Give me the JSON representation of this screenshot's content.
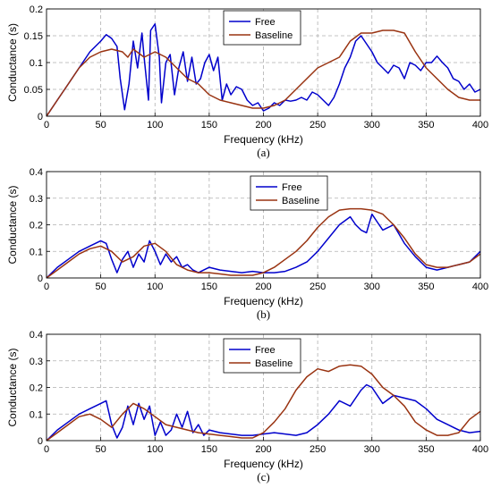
{
  "chart_data": [
    {
      "type": "line",
      "caption": "(a)",
      "xlabel": "Frequency (kHz)",
      "ylabel": "Conductance (s)",
      "xlim": [
        0,
        400
      ],
      "ylim": [
        0,
        0.2
      ],
      "xticks": [
        0,
        50,
        100,
        150,
        200,
        250,
        300,
        350,
        400
      ],
      "yticks": [
        0,
        0.05,
        0.1,
        0.15,
        0.2
      ],
      "ytick_labels": [
        "0",
        "0.05",
        "0.1",
        "0.15",
        "0.2"
      ],
      "grid": true,
      "legend_position": "top-center",
      "series": [
        {
          "name": "Free",
          "color": "#0000cc",
          "x": [
            0,
            10,
            20,
            30,
            40,
            50,
            55,
            60,
            65,
            68,
            72,
            76,
            80,
            84,
            88,
            90,
            94,
            96,
            100,
            104,
            106,
            110,
            114,
            118,
            122,
            126,
            130,
            134,
            138,
            142,
            146,
            150,
            154,
            158,
            162,
            166,
            170,
            175,
            180,
            185,
            190,
            195,
            200,
            205,
            210,
            215,
            220,
            225,
            230,
            235,
            240,
            245,
            250,
            255,
            260,
            265,
            270,
            275,
            280,
            285,
            290,
            295,
            300,
            305,
            310,
            315,
            320,
            325,
            330,
            335,
            340,
            345,
            350,
            355,
            360,
            365,
            370,
            375,
            380,
            385,
            390,
            395,
            400
          ],
          "y": [
            0.0,
            0.03,
            0.06,
            0.09,
            0.12,
            0.14,
            0.152,
            0.145,
            0.13,
            0.07,
            0.012,
            0.06,
            0.14,
            0.09,
            0.155,
            0.11,
            0.03,
            0.16,
            0.172,
            0.11,
            0.025,
            0.1,
            0.115,
            0.04,
            0.09,
            0.12,
            0.065,
            0.11,
            0.06,
            0.07,
            0.1,
            0.115,
            0.085,
            0.11,
            0.03,
            0.06,
            0.04,
            0.055,
            0.05,
            0.03,
            0.02,
            0.025,
            0.01,
            0.015,
            0.025,
            0.02,
            0.03,
            0.028,
            0.03,
            0.035,
            0.03,
            0.045,
            0.04,
            0.03,
            0.02,
            0.035,
            0.06,
            0.09,
            0.11,
            0.14,
            0.15,
            0.135,
            0.12,
            0.1,
            0.09,
            0.08,
            0.095,
            0.09,
            0.07,
            0.1,
            0.095,
            0.085,
            0.1,
            0.1,
            0.112,
            0.1,
            0.09,
            0.07,
            0.065,
            0.05,
            0.06,
            0.045,
            0.05
          ]
        },
        {
          "name": "Baseline",
          "color": "#993311",
          "x": [
            0,
            10,
            20,
            30,
            40,
            50,
            60,
            70,
            75,
            80,
            90,
            100,
            110,
            120,
            130,
            140,
            150,
            160,
            170,
            180,
            190,
            200,
            210,
            220,
            230,
            240,
            250,
            260,
            270,
            280,
            290,
            300,
            310,
            320,
            330,
            340,
            350,
            360,
            370,
            380,
            390,
            400
          ],
          "y": [
            0.0,
            0.03,
            0.06,
            0.09,
            0.11,
            0.12,
            0.125,
            0.12,
            0.11,
            0.125,
            0.11,
            0.12,
            0.11,
            0.09,
            0.07,
            0.06,
            0.04,
            0.03,
            0.025,
            0.02,
            0.015,
            0.015,
            0.02,
            0.03,
            0.05,
            0.07,
            0.09,
            0.1,
            0.11,
            0.14,
            0.155,
            0.155,
            0.16,
            0.16,
            0.155,
            0.12,
            0.09,
            0.07,
            0.05,
            0.035,
            0.03,
            0.03
          ]
        }
      ]
    },
    {
      "type": "line",
      "caption": "(b)",
      "xlabel": "Frequency (kHz)",
      "ylabel": "Conductance (s)",
      "xlim": [
        0,
        400
      ],
      "ylim": [
        0,
        0.4
      ],
      "xticks": [
        0,
        50,
        100,
        150,
        200,
        250,
        300,
        350,
        400
      ],
      "yticks": [
        0,
        0.1,
        0.2,
        0.3,
        0.4
      ],
      "ytick_labels": [
        "0",
        "0.1",
        "0.2",
        "0.3",
        "0.4"
      ],
      "grid": true,
      "legend_position": "top-center",
      "series": [
        {
          "name": "Free",
          "color": "#0000cc",
          "x": [
            0,
            10,
            20,
            30,
            40,
            50,
            55,
            60,
            65,
            70,
            75,
            80,
            85,
            90,
            95,
            100,
            105,
            110,
            115,
            120,
            125,
            130,
            135,
            140,
            145,
            150,
            155,
            160,
            170,
            180,
            190,
            200,
            210,
            220,
            230,
            240,
            250,
            260,
            270,
            280,
            285,
            290,
            295,
            300,
            305,
            310,
            320,
            330,
            340,
            350,
            360,
            370,
            380,
            390,
            400
          ],
          "y": [
            0.0,
            0.04,
            0.07,
            0.1,
            0.12,
            0.14,
            0.13,
            0.07,
            0.02,
            0.07,
            0.1,
            0.04,
            0.09,
            0.06,
            0.14,
            0.1,
            0.05,
            0.09,
            0.06,
            0.08,
            0.04,
            0.05,
            0.03,
            0.02,
            0.03,
            0.04,
            0.035,
            0.03,
            0.025,
            0.02,
            0.025,
            0.02,
            0.02,
            0.025,
            0.04,
            0.06,
            0.1,
            0.15,
            0.2,
            0.23,
            0.2,
            0.18,
            0.17,
            0.24,
            0.21,
            0.18,
            0.2,
            0.13,
            0.08,
            0.04,
            0.03,
            0.04,
            0.05,
            0.06,
            0.1
          ]
        },
        {
          "name": "Baseline",
          "color": "#993311",
          "x": [
            0,
            10,
            20,
            30,
            40,
            50,
            60,
            70,
            80,
            90,
            100,
            110,
            120,
            130,
            140,
            150,
            160,
            170,
            180,
            190,
            200,
            210,
            220,
            230,
            240,
            250,
            260,
            270,
            280,
            290,
            300,
            310,
            320,
            330,
            340,
            350,
            360,
            370,
            380,
            390,
            400
          ],
          "y": [
            0.0,
            0.03,
            0.06,
            0.09,
            0.11,
            0.12,
            0.1,
            0.06,
            0.08,
            0.12,
            0.13,
            0.1,
            0.05,
            0.03,
            0.02,
            0.02,
            0.015,
            0.01,
            0.01,
            0.01,
            0.02,
            0.04,
            0.07,
            0.1,
            0.14,
            0.19,
            0.23,
            0.255,
            0.26,
            0.26,
            0.255,
            0.24,
            0.2,
            0.15,
            0.09,
            0.05,
            0.04,
            0.04,
            0.05,
            0.06,
            0.09
          ]
        }
      ]
    },
    {
      "type": "line",
      "caption": "(c)",
      "xlabel": "Frequency (kHz)",
      "ylabel": "Conductance (s)",
      "xlim": [
        0,
        400
      ],
      "ylim": [
        0,
        0.4
      ],
      "xticks": [
        0,
        50,
        100,
        150,
        200,
        250,
        300,
        350,
        400
      ],
      "yticks": [
        0,
        0.1,
        0.2,
        0.3,
        0.4
      ],
      "ytick_labels": [
        "0",
        "0.1",
        "0.2",
        "0.3",
        "0.4"
      ],
      "grid": true,
      "legend_position": "top-center",
      "series": [
        {
          "name": "Free",
          "color": "#0000cc",
          "x": [
            0,
            10,
            20,
            30,
            40,
            50,
            55,
            60,
            65,
            70,
            75,
            80,
            85,
            90,
            95,
            100,
            105,
            110,
            115,
            120,
            125,
            130,
            135,
            140,
            145,
            150,
            160,
            170,
            180,
            190,
            200,
            210,
            220,
            230,
            240,
            250,
            260,
            270,
            280,
            290,
            295,
            300,
            310,
            320,
            330,
            340,
            350,
            360,
            370,
            380,
            390,
            400
          ],
          "y": [
            0.0,
            0.04,
            0.07,
            0.1,
            0.12,
            0.14,
            0.15,
            0.06,
            0.01,
            0.05,
            0.13,
            0.06,
            0.14,
            0.08,
            0.13,
            0.02,
            0.07,
            0.02,
            0.04,
            0.1,
            0.05,
            0.11,
            0.03,
            0.06,
            0.02,
            0.04,
            0.03,
            0.025,
            0.02,
            0.02,
            0.025,
            0.03,
            0.025,
            0.02,
            0.03,
            0.06,
            0.1,
            0.15,
            0.13,
            0.19,
            0.21,
            0.2,
            0.14,
            0.17,
            0.16,
            0.15,
            0.12,
            0.08,
            0.06,
            0.04,
            0.03,
            0.035
          ]
        },
        {
          "name": "Baseline",
          "color": "#993311",
          "x": [
            0,
            10,
            20,
            30,
            40,
            50,
            60,
            70,
            80,
            90,
            100,
            110,
            120,
            130,
            140,
            150,
            160,
            170,
            180,
            190,
            200,
            210,
            220,
            230,
            240,
            250,
            260,
            270,
            280,
            290,
            300,
            310,
            320,
            330,
            340,
            350,
            360,
            370,
            380,
            390,
            400
          ],
          "y": [
            0.0,
            0.03,
            0.06,
            0.09,
            0.1,
            0.08,
            0.05,
            0.1,
            0.14,
            0.12,
            0.09,
            0.06,
            0.05,
            0.04,
            0.03,
            0.025,
            0.02,
            0.015,
            0.01,
            0.01,
            0.03,
            0.07,
            0.12,
            0.19,
            0.24,
            0.27,
            0.26,
            0.28,
            0.285,
            0.28,
            0.25,
            0.2,
            0.17,
            0.13,
            0.07,
            0.04,
            0.02,
            0.02,
            0.03,
            0.08,
            0.11
          ]
        }
      ]
    }
  ]
}
